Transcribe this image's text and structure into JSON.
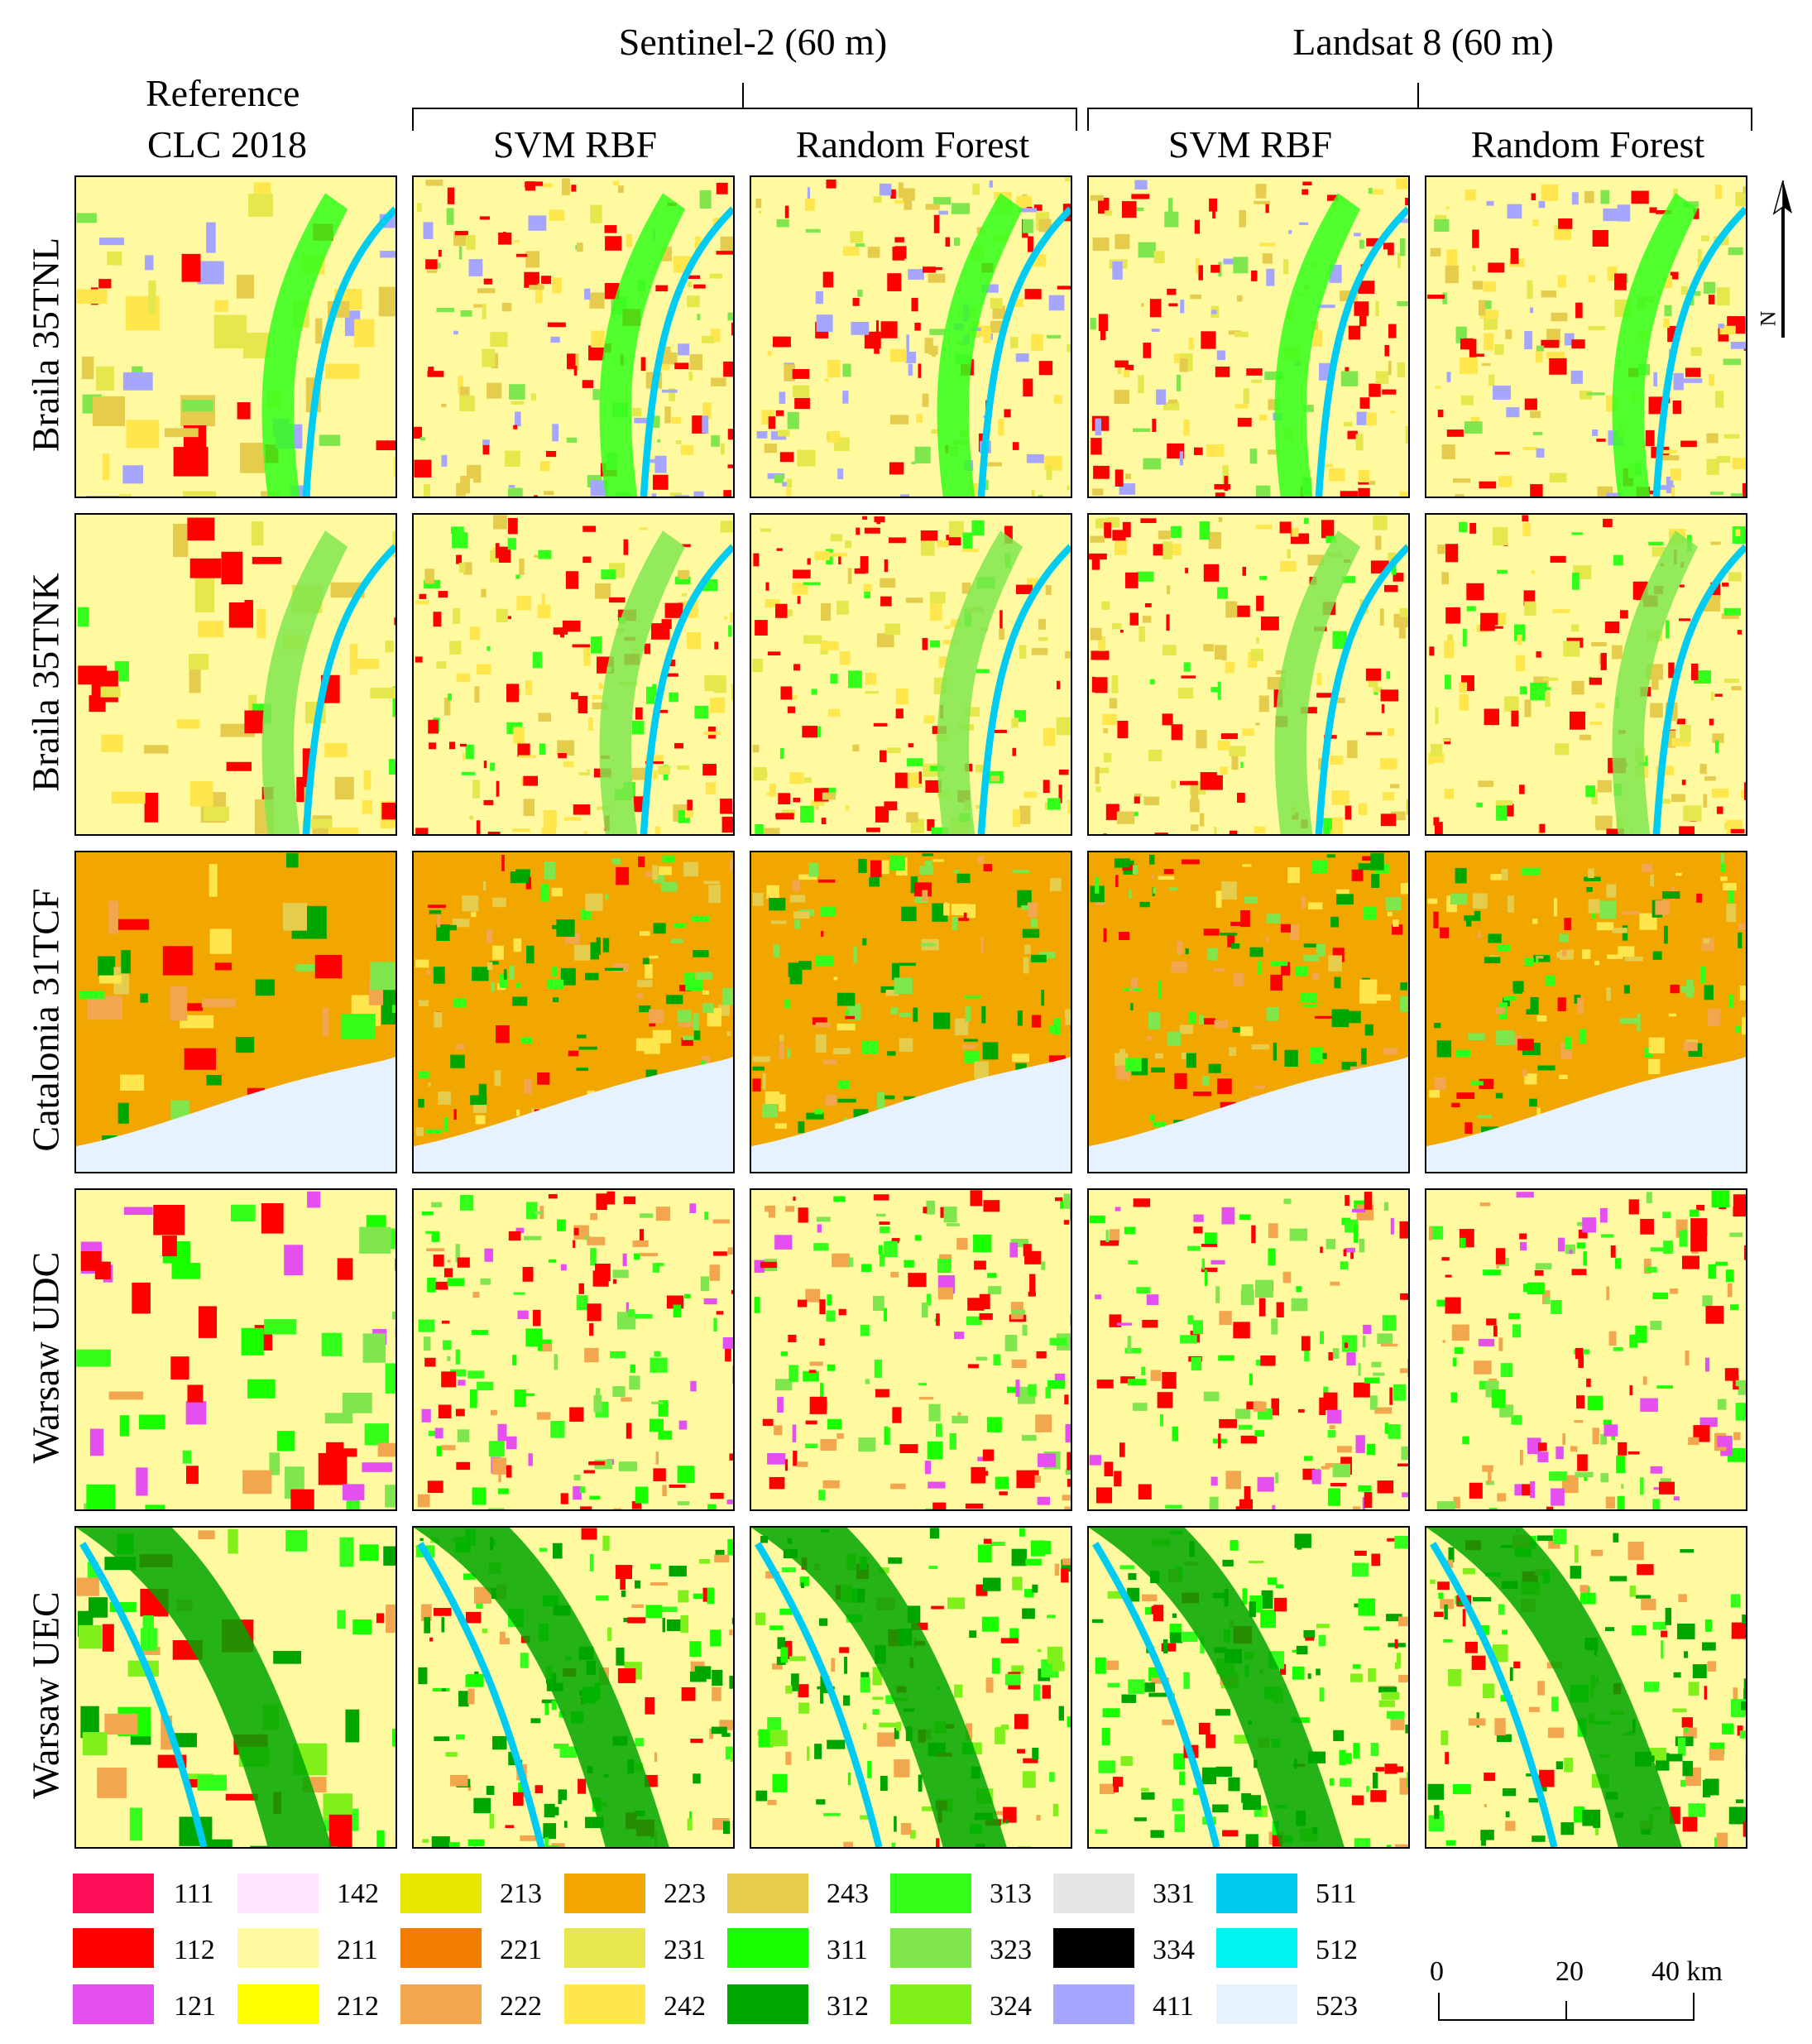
{
  "reference_header": [
    "Reference",
    "CLC 2018"
  ],
  "groups": [
    {
      "label": "Sentinel-2 (60 m)",
      "columns": [
        "SVM RBF",
        "Random Forest"
      ]
    },
    {
      "label": "Landsat 8 (60 m)",
      "columns": [
        "SVM RBF",
        "Random Forest"
      ]
    }
  ],
  "rows": [
    "Braila 35TNL",
    "Braila 35TNK",
    "Catalonia 31TCF",
    "Warsaw UDC",
    "Warsaw UEC"
  ],
  "north_label": "N",
  "legend": [
    {
      "code": "111",
      "color": "#ff0f5a"
    },
    {
      "code": "112",
      "color": "#ff0000"
    },
    {
      "code": "121",
      "color": "#e54ff0"
    },
    {
      "code": "142",
      "color": "#ffe5ff"
    },
    {
      "code": "211",
      "color": "#fffaa0"
    },
    {
      "code": "212",
      "color": "#ffff00"
    },
    {
      "code": "213",
      "color": "#e6e600"
    },
    {
      "code": "221",
      "color": "#f07d00"
    },
    {
      "code": "222",
      "color": "#f2a64d"
    },
    {
      "code": "223",
      "color": "#f2a600"
    },
    {
      "code": "231",
      "color": "#e6e64d"
    },
    {
      "code": "242",
      "color": "#ffe64d"
    },
    {
      "code": "243",
      "color": "#e6cc4d"
    },
    {
      "code": "311",
      "color": "#1aff00"
    },
    {
      "code": "312",
      "color": "#00a600"
    },
    {
      "code": "313",
      "color": "#33ff1a"
    },
    {
      "code": "323",
      "color": "#80e64d"
    },
    {
      "code": "324",
      "color": "#80f01a"
    },
    {
      "code": "331",
      "color": "#e6e6e6"
    },
    {
      "code": "334",
      "color": "#000000"
    },
    {
      "code": "411",
      "color": "#a6a6ff"
    },
    {
      "code": "511",
      "color": "#00ccf2"
    },
    {
      "code": "512",
      "color": "#00f2f2"
    },
    {
      "code": "523",
      "color": "#e6f2ff"
    }
  ],
  "scale": {
    "ticks": [
      "0",
      "20",
      "40 km"
    ]
  }
}
